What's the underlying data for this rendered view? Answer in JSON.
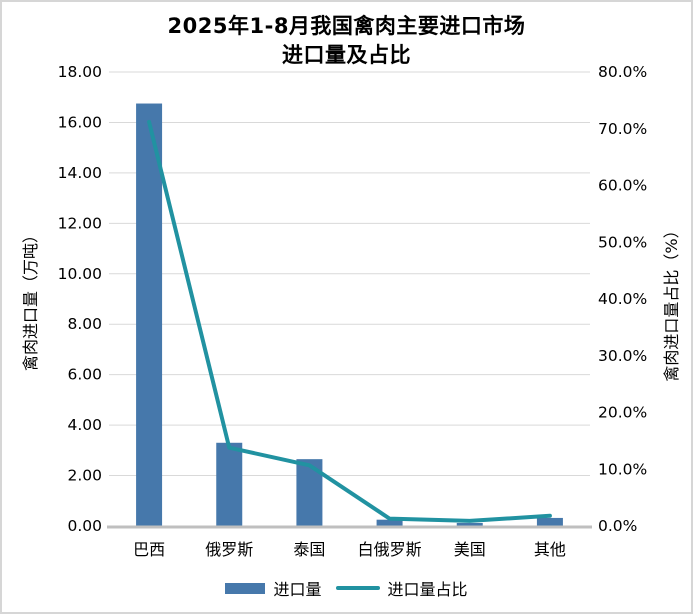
{
  "title": {
    "line1": "2025年1-8月我国禽肉主要进口市场",
    "line2": "进口量及占比"
  },
  "chart_data": {
    "type": "bar",
    "subtype": "bar+line dual axis",
    "categories": [
      "巴西",
      "俄罗斯",
      "泰国",
      "白俄罗斯",
      "美国",
      "其他"
    ],
    "series": [
      {
        "name": "进口量",
        "type": "bar",
        "axis": "left",
        "values": [
          16.75,
          3.3,
          2.65,
          0.25,
          0.12,
          0.32
        ],
        "color": "#4678ab"
      },
      {
        "name": "进口量占比",
        "type": "line",
        "axis": "right",
        "values": [
          71.2,
          13.8,
          10.7,
          1.3,
          0.9,
          1.8
        ],
        "color": "#2192a1"
      }
    ],
    "left_axis": {
      "title": "禽肉进口量（万吨）",
      "min": 0,
      "max": 18,
      "step": 2,
      "format": "fixed2"
    },
    "right_axis": {
      "title": "禽肉进口量占比（%）",
      "min": 0,
      "max": 80,
      "step": 10,
      "format": "pct1"
    },
    "grid": true,
    "legend_position": "bottom"
  },
  "colors": {
    "bar": "#4678ab",
    "line": "#2192a1",
    "grid": "#d9d9d9",
    "axis_line": "#bfbfbf",
    "text": "#000000",
    "background": "#ffffff",
    "border": "#d6d6d6"
  }
}
